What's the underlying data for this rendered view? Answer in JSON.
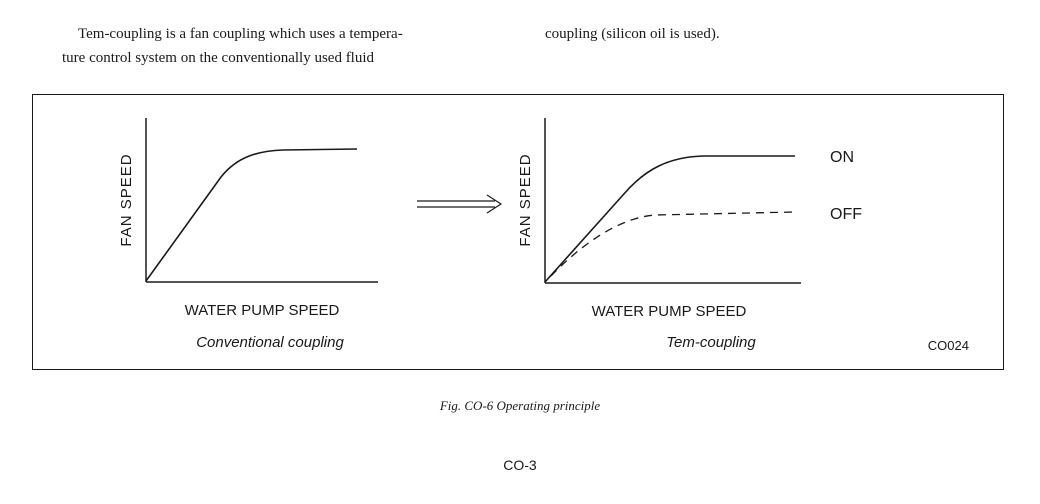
{
  "paragraph": {
    "left_lines": [
      "Tem-coupling is a fan coupling which uses a tempera-",
      "ture control system on the conventionally used fluid"
    ],
    "right_lines": [
      "coupling (silicon oil is used)."
    ]
  },
  "figure": {
    "left_chart": {
      "ylabel": "FAN SPEED",
      "xlabel": "WATER PUMP SPEED",
      "caption": "Conventional coupling"
    },
    "right_chart": {
      "ylabel": "FAN SPEED",
      "xlabel": "WATER PUMP SPEED",
      "caption": "Tem-coupling",
      "on_label": "ON",
      "off_label": "OFF"
    },
    "code": "CO024",
    "caption": "Fig. CO-6  Operating principle"
  },
  "page_number": "CO-3"
}
